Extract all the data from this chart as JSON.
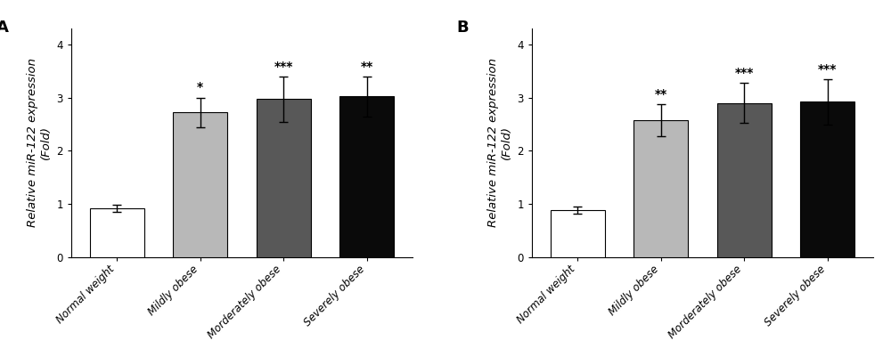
{
  "panel_A": {
    "label": "A",
    "categories": [
      "Normal weight",
      "Mildly obese",
      "Morderately obese",
      "Severely obese"
    ],
    "values": [
      0.92,
      2.72,
      2.97,
      3.02
    ],
    "errors": [
      0.07,
      0.28,
      0.42,
      0.38
    ],
    "bar_colors": [
      "#ffffff",
      "#b8b8b8",
      "#585858",
      "#0a0a0a"
    ],
    "bar_edgecolors": [
      "#000000",
      "#000000",
      "#000000",
      "#000000"
    ],
    "significance": [
      "",
      "*",
      "***",
      "**"
    ],
    "ylabel": "Relative miR-122 expression\n(Fold)",
    "ylim": [
      0,
      4.3
    ],
    "yticks": [
      0,
      1,
      2,
      3,
      4
    ]
  },
  "panel_B": {
    "label": "B",
    "categories": [
      "Normal weight",
      "Mildly obese",
      "Morderately obese",
      "Severely obese"
    ],
    "values": [
      0.88,
      2.57,
      2.9,
      2.92
    ],
    "errors": [
      0.07,
      0.3,
      0.38,
      0.42
    ],
    "bar_colors": [
      "#ffffff",
      "#b8b8b8",
      "#585858",
      "#0a0a0a"
    ],
    "bar_edgecolors": [
      "#000000",
      "#000000",
      "#000000",
      "#000000"
    ],
    "significance": [
      "",
      "**",
      "***",
      "***"
    ],
    "ylabel": "Relative miR-122 expression\n(Fold)",
    "ylim": [
      0,
      4.3
    ],
    "yticks": [
      0,
      1,
      2,
      3,
      4
    ]
  },
  "bar_width": 0.65,
  "figsize": [
    10.0,
    4.01
  ],
  "dpi": 100,
  "background_color": "#ffffff",
  "tick_label_fontsize": 8.5,
  "ylabel_fontsize": 9.5,
  "panel_label_fontsize": 13,
  "sig_fontsize": 10
}
